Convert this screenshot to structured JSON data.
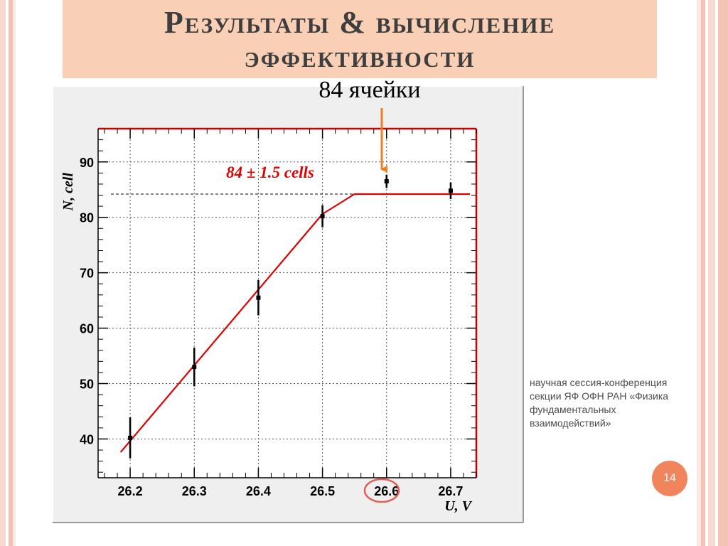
{
  "slide": {
    "title": "Результаты & вычисление эффективности",
    "annotation_label": "84 ячейки",
    "side_note": "научная сессия-конференция секции ЯФ ОФН РАН «Физика фундаментальных взаимодействий»",
    "page_number": "14"
  },
  "colors": {
    "title_bg": "#f9cfb5",
    "fit_line": "#e00000",
    "arrow": "#f07d22",
    "highlight_circle": "#e0605a",
    "page_badge": "#f0855d"
  },
  "chart_data": {
    "type": "scatter",
    "xlabel": "U, V",
    "ylabel": "N, cell",
    "xlim": [
      26.15,
      26.74
    ],
    "ylim": [
      33,
      96
    ],
    "grid": true,
    "x_ticks": [
      "26.2",
      "26.3",
      "26.4",
      "26.5",
      "26.6",
      "26.7"
    ],
    "y_ticks": [
      "40",
      "50",
      "60",
      "70",
      "80",
      "90"
    ],
    "points": [
      {
        "x": 26.2,
        "y": 40.2,
        "err": 3.7
      },
      {
        "x": 26.3,
        "y": 53.0,
        "err": 3.5
      },
      {
        "x": 26.4,
        "y": 65.5,
        "err": 3.2
      },
      {
        "x": 26.5,
        "y": 80.2,
        "err": 2.0
      },
      {
        "x": 26.6,
        "y": 86.5,
        "err": 1.2
      },
      {
        "x": 26.7,
        "y": 84.8,
        "err": 1.5
      }
    ],
    "fit": {
      "name": "84 ± 1.5 cells",
      "points": [
        [
          26.185,
          37.6
        ],
        [
          26.5,
          80.6
        ],
        [
          26.55,
          84.2
        ],
        [
          26.73,
          84.2
        ]
      ]
    },
    "reference_line": {
      "y": 84.2,
      "x": [
        26.17,
        26.73
      ],
      "style": "dashed"
    },
    "highlighted_tick": "26.6"
  }
}
